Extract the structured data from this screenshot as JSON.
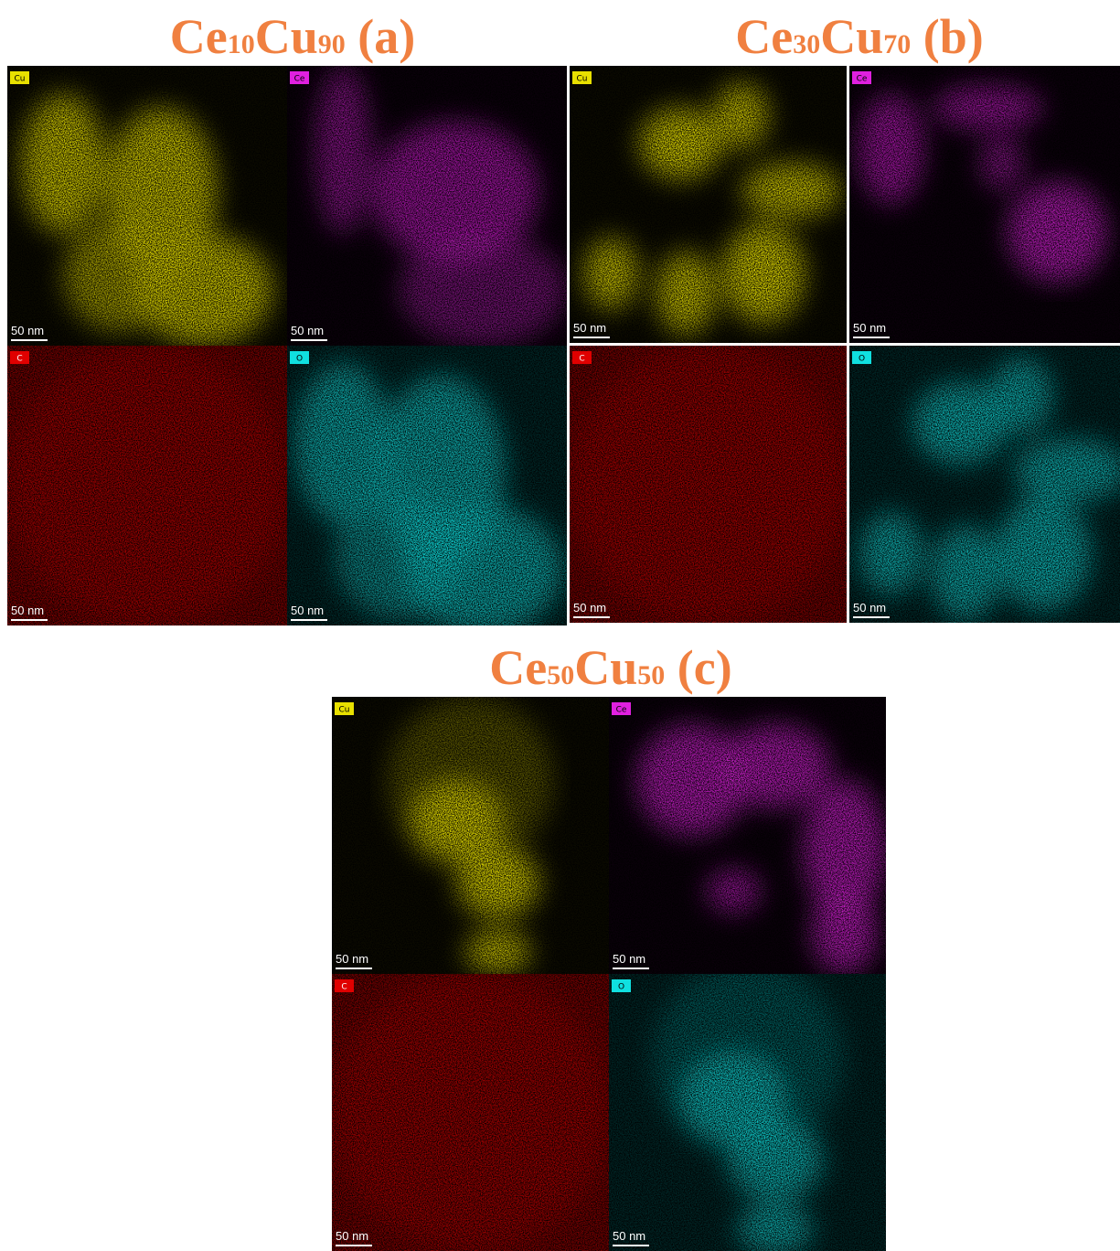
{
  "panels": [
    {
      "title": [
        {
          "text": "Ce"
        },
        {
          "text": "10",
          "sub": true
        },
        {
          "text": "Cu"
        },
        {
          "text": "90",
          "sub": true
        },
        {
          "text": " (a)"
        }
      ],
      "maps": [
        {
          "element": "Cu",
          "color": "#e8e000",
          "scale": "50 nm"
        },
        {
          "element": "Ce",
          "color": "#e020e0",
          "scale": "50 nm"
        },
        {
          "element": "C",
          "color": "#e00000",
          "scale": "50 nm"
        },
        {
          "element": "O",
          "color": "#10e0e0",
          "scale": "50 nm"
        }
      ]
    },
    {
      "title": [
        {
          "text": "Ce"
        },
        {
          "text": "30",
          "sub": true
        },
        {
          "text": "Cu"
        },
        {
          "text": "70",
          "sub": true
        },
        {
          "text": " (b)"
        }
      ],
      "maps": [
        {
          "element": "Cu",
          "color": "#e8e000",
          "scale": "50 nm"
        },
        {
          "element": "Ce",
          "color": "#e020e0",
          "scale": "50 nm"
        },
        {
          "element": "C",
          "color": "#e00000",
          "scale": "50 nm"
        },
        {
          "element": "O",
          "color": "#10e0e0",
          "scale": "50 nm"
        }
      ]
    },
    {
      "title": [
        {
          "text": "Ce"
        },
        {
          "text": "50",
          "sub": true
        },
        {
          "text": "Cu"
        },
        {
          "text": "50",
          "sub": true
        },
        {
          "text": " (c)"
        }
      ],
      "maps": [
        {
          "element": "Cu",
          "color": "#e8e000",
          "scale": "50 nm"
        },
        {
          "element": "Ce",
          "color": "#e020e0",
          "scale": "50 nm"
        },
        {
          "element": "C",
          "color": "#e00000",
          "scale": "50 nm"
        },
        {
          "element": "O",
          "color": "#10e0e0",
          "scale": "50 nm"
        }
      ]
    }
  ]
}
